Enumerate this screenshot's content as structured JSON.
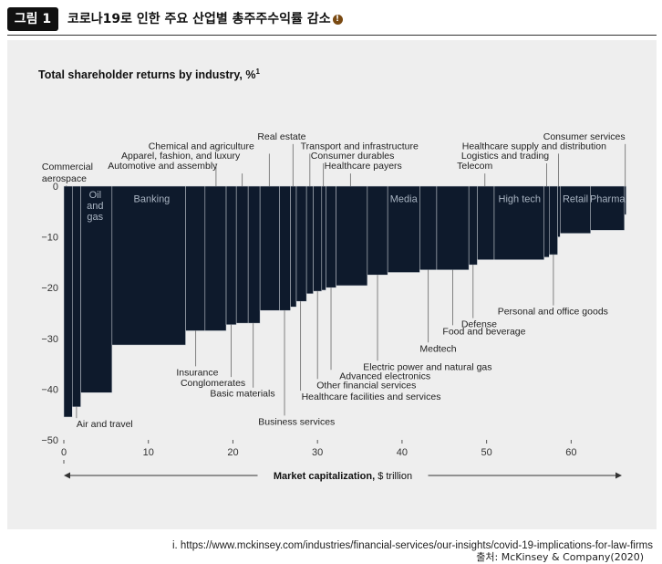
{
  "header": {
    "badge": "그림 1",
    "title": "코로나19로 인한 주요 산업별 총주주수익률 감소",
    "title_icon": "warning-icon"
  },
  "source": "출처: McKinsey & Company(2020)",
  "footnote": "i. https://www.mckinsey.com/industries/financial-services/our-insights/covid-19-implications-for-law-firms",
  "chart_data": {
    "type": "bar",
    "subtype": "variable-width (marimekko)",
    "title": "Total shareholder returns by industry, %",
    "title_superscript": "1",
    "xlabel": "Market capitalization, $ trillion",
    "xlim": [
      0,
      66
    ],
    "ylim": [
      -50,
      0
    ],
    "xticks": [
      0,
      10,
      20,
      30,
      40,
      50,
      60
    ],
    "yticks": [
      0,
      -10,
      -20,
      -30,
      -40,
      -50
    ],
    "bar_color": "#0e1a2c",
    "label_color": "#222222",
    "inside_label_color": "#a9b4c2",
    "bars": [
      {
        "name": "Commercial aerospace",
        "x0": 0,
        "x1": 1,
        "value": -45.5
      },
      {
        "name": "Air and travel",
        "x0": 1,
        "x1": 2,
        "value": -43.5
      },
      {
        "name": "Oil and gas",
        "x0": 2,
        "x1": 5.7,
        "value": -40.7
      },
      {
        "name": "Banking",
        "x0": 5.7,
        "x1": 14.4,
        "value": -31.3
      },
      {
        "name": "Insurance",
        "x0": 14.4,
        "x1": 16.7,
        "value": -28.5
      },
      {
        "name": "Apparel, fashion, and luxury",
        "x0": 16.7,
        "x1": 19.2,
        "value": -28.5
      },
      {
        "name": "Conglomerates",
        "x0": 19.2,
        "x1": 20.4,
        "value": -27.3
      },
      {
        "name": "Automotive and assembly",
        "x0": 20.4,
        "x1": 21.8,
        "value": -27.0
      },
      {
        "name": "Basic materials",
        "x0": 21.8,
        "x1": 23.2,
        "value": -27.0
      },
      {
        "name": "Chemical and agriculture",
        "x0": 23.2,
        "x1": 25.5,
        "value": -24.5
      },
      {
        "name": "Business services",
        "x0": 25.5,
        "x1": 26.8,
        "value": -24.5
      },
      {
        "name": "Real estate",
        "x0": 26.8,
        "x1": 27.5,
        "value": -23.8
      },
      {
        "name": "Healthcare facilities and services",
        "x0": 27.5,
        "x1": 28.7,
        "value": -22.7
      },
      {
        "name": "Transport and infrastructure",
        "x0": 28.7,
        "x1": 29.5,
        "value": -21.2
      },
      {
        "name": "Other financial services",
        "x0": 29.5,
        "x1": 30.5,
        "value": -20.7
      },
      {
        "name": "Consumer durables",
        "x0": 30.5,
        "x1": 31.0,
        "value": -20.5
      },
      {
        "name": "Advanced electronics",
        "x0": 31.0,
        "x1": 32.2,
        "value": -20.0
      },
      {
        "name": "Healthcare payers",
        "x0": 32.2,
        "x1": 35.9,
        "value": -19.6
      },
      {
        "name": "Electric power and natural gas",
        "x0": 35.9,
        "x1": 38.3,
        "value": -17.5
      },
      {
        "name": "Media",
        "x0": 38.3,
        "x1": 42.1,
        "value": -17.0
      },
      {
        "name": "Medtech",
        "x0": 42.1,
        "x1": 44.1,
        "value": -16.5
      },
      {
        "name": "Food and beverage",
        "x0": 44.1,
        "x1": 47.9,
        "value": -16.5
      },
      {
        "name": "Defense",
        "x0": 47.9,
        "x1": 48.9,
        "value": -15.5
      },
      {
        "name": "Telecom",
        "x0": 48.9,
        "x1": 50.9,
        "value": -14.5
      },
      {
        "name": "High tech",
        "x0": 50.9,
        "x1": 56.8,
        "value": -14.5
      },
      {
        "name": "Logistics and trading",
        "x0": 56.8,
        "x1": 57.4,
        "value": -14.0
      },
      {
        "name": "Personal and office goods",
        "x0": 57.4,
        "x1": 58.4,
        "value": -13.5
      },
      {
        "name": "Healthcare supply and distribution",
        "x0": 58.4,
        "x1": 58.7,
        "value": -10.0
      },
      {
        "name": "Retail",
        "x0": 58.7,
        "x1": 62.3,
        "value": -9.3
      },
      {
        "name": "Pharma",
        "x0": 62.3,
        "x1": 66.3,
        "value": -8.7
      },
      {
        "name": "Consumer services",
        "x0": 66.3,
        "x1": 66.5,
        "value": -5.6
      }
    ],
    "inside_labels": [
      {
        "name": "Oil and gas",
        "lines": [
          "Oil",
          "and",
          "gas"
        ],
        "x": 3.7,
        "y": -1.6
      },
      {
        "name": "Banking",
        "lines": [
          "Banking"
        ],
        "x": 10.4,
        "y": -2.4
      },
      {
        "name": "Media",
        "lines": [
          "Media"
        ],
        "x": 40.2,
        "y": -2.4
      },
      {
        "name": "High tech",
        "lines": [
          "High tech"
        ],
        "x": 53.9,
        "y": -2.4
      },
      {
        "name": "Retail",
        "lines": [
          "Retail"
        ],
        "x": 60.5,
        "y": -2.4
      },
      {
        "name": "Pharma",
        "lines": [
          "Pharma"
        ],
        "x": 64.3,
        "y": -2.4
      }
    ],
    "top_labels": [
      {
        "text": "Commercial",
        "text2": "aerospace",
        "anchor": "start",
        "x": -2.6,
        "y": 3.2,
        "leader_x": 0.3
      },
      {
        "text": "Automotive and assembly",
        "anchor": "start",
        "x": 5.2,
        "y": 3.4,
        "leader_x": 21.1
      },
      {
        "text": "Apparel, fashion, and luxury",
        "anchor": "start",
        "x": 6.8,
        "y": 5.4,
        "leader_x": 18.0
      },
      {
        "text": "Chemical and agriculture",
        "anchor": "start",
        "x": 10.0,
        "y": 7.3,
        "leader_x": 24.3
      },
      {
        "text": "Real estate",
        "anchor": "start",
        "x": 22.9,
        "y": 9.2,
        "leader_x": 27.1
      },
      {
        "text": "Transport and infrastructure",
        "anchor": "start",
        "x": 28.0,
        "y": 7.3,
        "leader_x": 29.1
      },
      {
        "text": "Consumer durables",
        "anchor": "start",
        "x": 29.2,
        "y": 5.4,
        "leader_x": 30.7
      },
      {
        "text": "Healthcare payers",
        "anchor": "start",
        "x": 30.8,
        "y": 3.4,
        "leader_x": 33.9
      },
      {
        "text": "Telecom",
        "anchor": "start",
        "x": 46.5,
        "y": 3.4,
        "leader_x": 49.8
      },
      {
        "text": "Logistics and trading",
        "anchor": "start",
        "x": 47.0,
        "y": 5.4,
        "leader_x": 57.1
      },
      {
        "text": "Healthcare supply and distribution",
        "anchor": "start",
        "x": 47.1,
        "y": 7.3,
        "leader_x": 58.5
      },
      {
        "text": "Consumer services",
        "anchor": "start",
        "x": 56.7,
        "y": 9.2,
        "leader_x": 66.4
      }
    ],
    "bottom_labels": [
      {
        "text": "Air and travel",
        "anchor": "start",
        "x": 1.5,
        "y": -47.5,
        "leader_x": 1.5
      },
      {
        "text": "Insurance",
        "anchor": "start",
        "x": 13.3,
        "y": -37.3,
        "leader_x": 15.6
      },
      {
        "text": "Conglomerates",
        "anchor": "start",
        "x": 13.8,
        "y": -39.4,
        "leader_x": 19.8
      },
      {
        "text": "Basic materials",
        "anchor": "start",
        "x": 17.3,
        "y": -41.5,
        "leader_x": 22.4
      },
      {
        "text": "Business services",
        "anchor": "start",
        "x": 23.0,
        "y": -47.0,
        "leader_x": 26.1
      },
      {
        "text": "Healthcare facilities and services",
        "anchor": "start",
        "x": 28.1,
        "y": -42.1,
        "leader_x": 28.0
      },
      {
        "text": "Other financial services",
        "anchor": "start",
        "x": 29.9,
        "y": -39.8,
        "leader_x": 30.0
      },
      {
        "text": "Advanced electronics",
        "anchor": "start",
        "x": 32.6,
        "y": -38.0,
        "leader_x": 31.6
      },
      {
        "text": "Electric power and natural gas",
        "anchor": "start",
        "x": 35.4,
        "y": -36.2,
        "leader_x": 37.1
      },
      {
        "text": "Medtech",
        "anchor": "start",
        "x": 42.1,
        "y": -32.6,
        "leader_x": 43.1
      },
      {
        "text": "Food and beverage",
        "anchor": "start",
        "x": 44.8,
        "y": -29.2,
        "leader_x": 46.0
      },
      {
        "text": "Defense",
        "anchor": "start",
        "x": 47.0,
        "y": -27.8,
        "leader_x": 48.4
      },
      {
        "text": "Personal and office goods",
        "anchor": "start",
        "x": 51.3,
        "y": -25.3,
        "leader_x": 57.9
      }
    ]
  }
}
